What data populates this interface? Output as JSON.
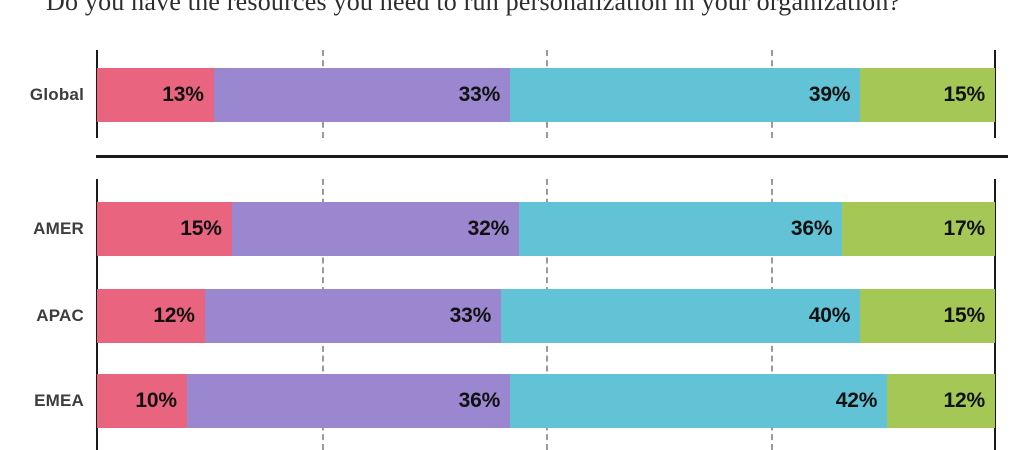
{
  "title": {
    "text": "Do you have the resources you need to run personalization in your organization?"
  },
  "colors": {
    "segment_pink": "#e9647f",
    "segment_purple": "#9a87cf",
    "segment_teal": "#62c3d6",
    "segment_green": "#a4c755",
    "axis": "#1a1a1a",
    "gridline": "#9a9a9a",
    "row_label_text": "#3d3d3d",
    "value_text": "#111111"
  },
  "chart_data": {
    "type": "bar",
    "orientation": "horizontal",
    "stacked": true,
    "unit": "%",
    "x_range": [
      0,
      100
    ],
    "gridlines_pct": [
      25,
      50,
      75
    ],
    "title": "Do you have the resources you need to run personalization in your organization?",
    "segment_colors": [
      "#e9647f",
      "#9a87cf",
      "#62c3d6",
      "#a4c755"
    ],
    "groups": [
      {
        "name": "global",
        "rows": [
          {
            "label": "Global",
            "values": [
              13,
              33,
              39,
              15
            ]
          }
        ]
      },
      {
        "name": "regional",
        "rows": [
          {
            "label": "AMER",
            "values": [
              15,
              32,
              36,
              17
            ]
          },
          {
            "label": "APAC",
            "values": [
              12,
              33,
              40,
              15
            ]
          },
          {
            "label": "EMEA",
            "values": [
              10,
              36,
              42,
              12
            ]
          }
        ]
      }
    ]
  }
}
